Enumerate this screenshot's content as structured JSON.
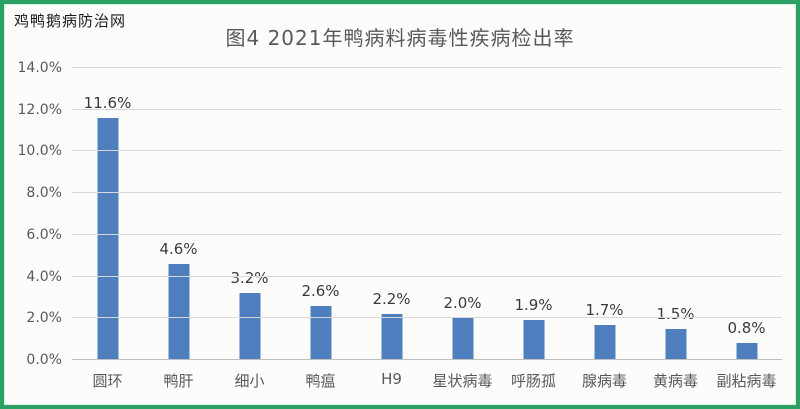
{
  "watermark": "鸡鸭鹅病防治网",
  "title": "图4 2021年鸭病料病毒性疾病检出率",
  "colors": {
    "bar": "#4e7ebe",
    "border": "#2ba164",
    "gridline": "#d9d9d9",
    "title_text": "#595959",
    "axis_text": "#595959",
    "value_label_text": "#3a3a3a"
  },
  "chart_data": {
    "type": "bar",
    "title": "图4 2021年鸭病料病毒性疾病检出率",
    "categories": [
      "圆环",
      "鸭肝",
      "细小",
      "鸭瘟",
      "H9",
      "星状病毒",
      "呼肠孤",
      "腺病毒",
      "黄病毒",
      "副粘病毒"
    ],
    "values": [
      11.6,
      4.6,
      3.2,
      2.6,
      2.2,
      2.0,
      1.9,
      1.7,
      1.5,
      0.8
    ],
    "value_labels": [
      "11.6%",
      "4.6%",
      "3.2%",
      "2.6%",
      "2.2%",
      "2.0%",
      "1.9%",
      "1.7%",
      "1.5%",
      "0.8%"
    ],
    "xlabel": "",
    "ylabel": "",
    "ylim": [
      0,
      14
    ],
    "ytick_step": 2,
    "ytick_labels": [
      "0.0%",
      "2.0%",
      "4.0%",
      "6.0%",
      "8.0%",
      "10.0%",
      "12.0%",
      "14.0%"
    ],
    "grid": true,
    "legend": false
  }
}
